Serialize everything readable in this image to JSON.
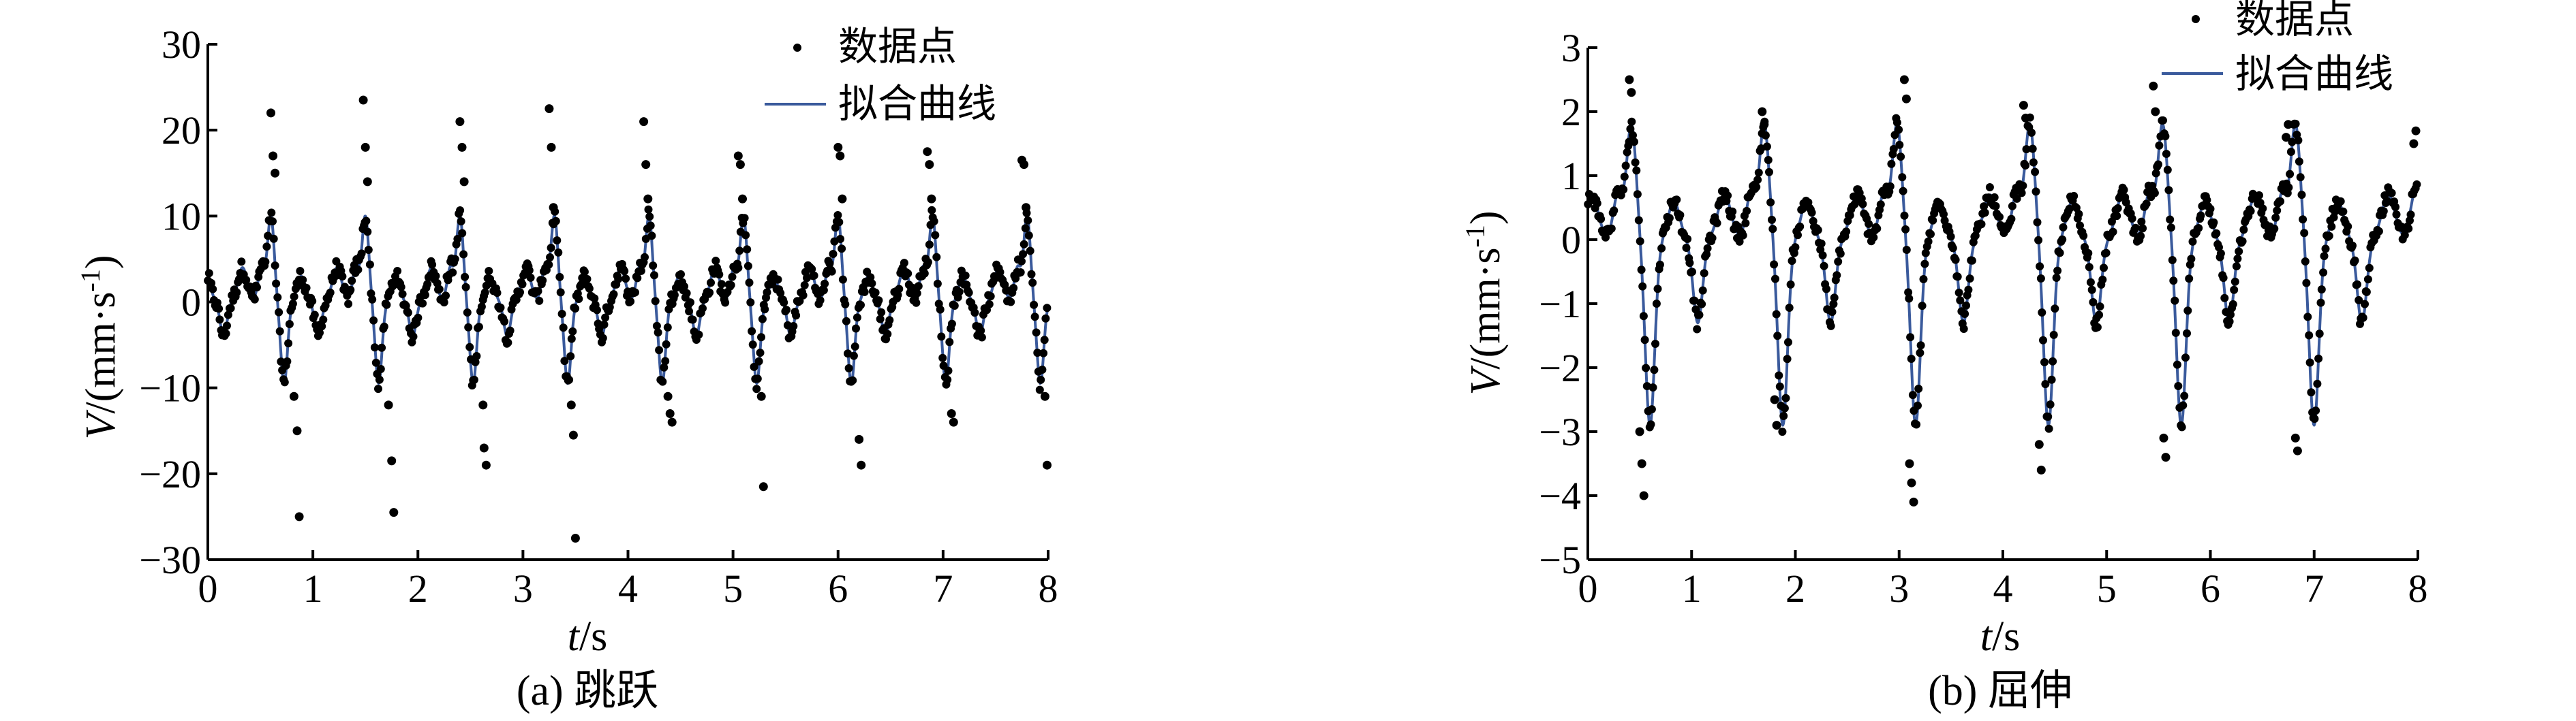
{
  "chart_data": [
    {
      "type": "scatter",
      "caption": "(a) 跳跃",
      "xlabel_var": "t",
      "xlabel_unit": "/s",
      "ylabel_var": "V",
      "ylabel_unit": "/(mm·s",
      "ylabel_sup": "-1",
      "ylabel_close": ")",
      "xlim": [
        0,
        8
      ],
      "ylim": [
        -30,
        30
      ],
      "xticks": [
        0,
        1,
        2,
        3,
        4,
        5,
        6,
        7,
        8
      ],
      "yticks": [
        -30,
        -20,
        -10,
        0,
        10,
        20,
        30
      ],
      "ytick_labels": [
        "−30",
        "−20",
        "−10",
        "0",
        "10",
        "20",
        "30"
      ],
      "legend_position": "top-right",
      "series": [
        {
          "name": "数据点",
          "kind": "scatter",
          "color": "#000000"
        },
        {
          "name": "拟合曲线",
          "kind": "line",
          "color": "#3a5a9c"
        }
      ],
      "fit": {
        "period": 0.9,
        "phase": 0.6,
        "peak": 10,
        "trough": -9.5,
        "mid_bumps": [
          3,
          -4,
          4
        ]
      },
      "outliers": [
        [
          0.6,
          22
        ],
        [
          0.62,
          17
        ],
        [
          0.64,
          15
        ],
        [
          0.85,
          -15
        ],
        [
          0.87,
          -25
        ],
        [
          0.82,
          -11
        ],
        [
          1.48,
          23.5
        ],
        [
          1.5,
          18
        ],
        [
          1.52,
          14
        ],
        [
          1.75,
          -18.5
        ],
        [
          1.77,
          -24.5
        ],
        [
          1.72,
          -12
        ],
        [
          2.4,
          21
        ],
        [
          2.42,
          18
        ],
        [
          2.44,
          14
        ],
        [
          2.63,
          -17
        ],
        [
          2.65,
          -19
        ],
        [
          2.62,
          -12
        ],
        [
          3.25,
          22.5
        ],
        [
          3.27,
          18
        ],
        [
          3.29,
          11
        ],
        [
          3.48,
          -15.5
        ],
        [
          3.5,
          -27.5
        ],
        [
          3.46,
          -12
        ],
        [
          4.15,
          21
        ],
        [
          4.17,
          16
        ],
        [
          4.19,
          12
        ],
        [
          4.4,
          -13
        ],
        [
          4.42,
          -14
        ],
        [
          4.38,
          -11
        ],
        [
          5.05,
          17
        ],
        [
          5.07,
          16
        ],
        [
          5.09,
          12
        ],
        [
          5.27,
          -11
        ],
        [
          5.29,
          -21.5
        ],
        [
          6.0,
          18
        ],
        [
          6.02,
          17
        ],
        [
          6.04,
          12
        ],
        [
          6.2,
          -16
        ],
        [
          6.22,
          -19
        ],
        [
          6.85,
          17.5
        ],
        [
          6.87,
          16
        ],
        [
          6.89,
          12
        ],
        [
          7.08,
          -13
        ],
        [
          7.1,
          -14
        ],
        [
          7.75,
          16.5
        ],
        [
          7.77,
          16
        ],
        [
          7.79,
          11
        ],
        [
          7.97,
          -11
        ],
        [
          7.99,
          -19
        ]
      ]
    },
    {
      "type": "scatter",
      "caption": "(b) 屈伸",
      "xlabel_var": "t",
      "xlabel_unit": "/s",
      "ylabel_var": "V",
      "ylabel_unit": "/(mm·s",
      "ylabel_sup": "-1",
      "ylabel_close": ")",
      "xlim": [
        0,
        8
      ],
      "ylim": [
        -5,
        3
      ],
      "xticks": [
        0,
        1,
        2,
        3,
        4,
        5,
        6,
        7,
        8
      ],
      "yticks": [
        -5,
        -4,
        -3,
        -2,
        -1,
        0,
        1,
        2,
        3
      ],
      "ytick_labels": [
        "−5",
        "−4",
        "−3",
        "−2",
        "−1",
        "0",
        "1",
        "2",
        "3"
      ],
      "legend_position": "top-right",
      "series": [
        {
          "name": "数据点",
          "kind": "scatter",
          "color": "#000000"
        },
        {
          "name": "拟合曲线",
          "kind": "line",
          "color": "#3a5a9c"
        }
      ],
      "fit": {
        "period": 1.28,
        "phase": 0.42,
        "peak": 1.8,
        "trough": -2.9,
        "mid_bumps": [
          0.6,
          -1.3,
          0.7
        ]
      },
      "outliers": [
        [
          0.4,
          2.5
        ],
        [
          0.42,
          2.3
        ],
        [
          0.5,
          -3.0
        ],
        [
          0.52,
          -3.5
        ],
        [
          0.54,
          -4.0
        ],
        [
          1.68,
          2.0
        ],
        [
          1.7,
          1.8
        ],
        [
          1.8,
          -2.5
        ],
        [
          1.82,
          -2.9
        ],
        [
          3.05,
          2.5
        ],
        [
          3.07,
          2.2
        ],
        [
          3.1,
          -3.5
        ],
        [
          3.12,
          -3.8
        ],
        [
          3.14,
          -4.1
        ],
        [
          4.2,
          2.1
        ],
        [
          4.22,
          1.9
        ],
        [
          4.35,
          -3.2
        ],
        [
          4.37,
          -3.6
        ],
        [
          5.45,
          2.4
        ],
        [
          5.47,
          2.0
        ],
        [
          5.55,
          -3.1
        ],
        [
          5.57,
          -3.4
        ],
        [
          6.75,
          1.8
        ],
        [
          6.73,
          1.6
        ],
        [
          6.82,
          -3.1
        ],
        [
          6.84,
          -3.3
        ],
        [
          7.98,
          1.7
        ],
        [
          7.96,
          1.5
        ]
      ]
    }
  ]
}
